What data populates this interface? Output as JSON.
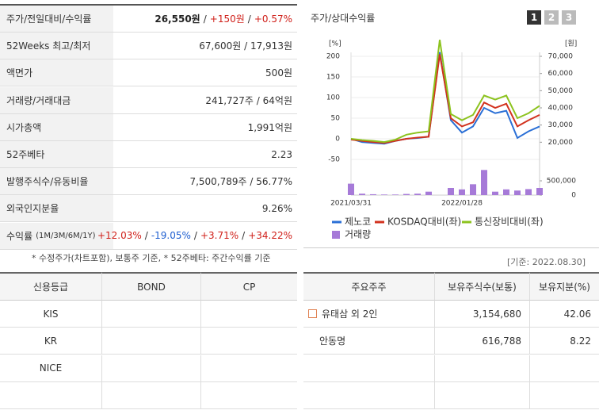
{
  "summary": {
    "rows": [
      {
        "label": "주가/전일대비/수익률",
        "parts": [
          {
            "text": "26,550원",
            "tone": "bold"
          },
          {
            "text": "+150원",
            "tone": "up"
          },
          {
            "text": "+0.57%",
            "tone": "up"
          }
        ]
      },
      {
        "label": "52Weeks 최고/최저",
        "parts": [
          {
            "text": "67,600원 / 17,913원",
            "tone": "plain"
          }
        ]
      },
      {
        "label": "액면가",
        "parts": [
          {
            "text": "500원",
            "tone": "plain"
          }
        ]
      },
      {
        "label": "거래량/거래대금",
        "parts": [
          {
            "text": "241,727주 / 64억원",
            "tone": "plain"
          }
        ]
      },
      {
        "label": "시가총액",
        "parts": [
          {
            "text": "1,991억원",
            "tone": "plain"
          }
        ]
      },
      {
        "label": "52주베타",
        "parts": [
          {
            "text": "2.23",
            "tone": "plain"
          }
        ]
      },
      {
        "label": "발행주식수/유동비율",
        "parts": [
          {
            "text": "7,500,789주 / 56.77%",
            "tone": "plain"
          }
        ]
      },
      {
        "label": "외국인지분율",
        "parts": [
          {
            "text": "9.26%",
            "tone": "plain"
          }
        ]
      },
      {
        "label": "수익률",
        "sublabel": "(1M/3M/6M/1Y)",
        "parts": [
          {
            "text": "+12.03%",
            "tone": "up"
          },
          {
            "text": "-19.05%",
            "tone": "down"
          },
          {
            "text": "+3.71%",
            "tone": "up"
          },
          {
            "text": "+34.22%",
            "tone": "up"
          }
        ]
      }
    ],
    "separator": "/",
    "note": "* 수정주가(차트포함), 보통주 기준, * 52주베타: 주간수익률 기준"
  },
  "credit": {
    "header": [
      "신용등급",
      "BOND",
      "CP"
    ],
    "rows": [
      [
        "KIS",
        "",
        ""
      ],
      [
        "KR",
        "",
        ""
      ],
      [
        "NICE",
        "",
        ""
      ],
      [
        "",
        "",
        ""
      ]
    ]
  },
  "chart_panel": {
    "title": "주가/상대수익률",
    "tabs": [
      "1",
      "2",
      "3"
    ],
    "base_date": "[기준: 2022.08.30]"
  },
  "chart_data": {
    "type": "line",
    "y_unit": "[%]",
    "y2_unit": "[원]",
    "categories": [
      "2021/03/31",
      null,
      null,
      null,
      null,
      null,
      null,
      null,
      null,
      null,
      "2022/01/28",
      null,
      null,
      null,
      null,
      null,
      null,
      null
    ],
    "ylim": [
      -50,
      200
    ],
    "yticks": [
      -50,
      0,
      50,
      100,
      150,
      200
    ],
    "y2lim": [
      10000,
      70000
    ],
    "y2ticks": [
      {
        "value": 20000,
        "label": "20,000"
      },
      {
        "value": 30000,
        "label": "30,000"
      },
      {
        "value": 40000,
        "label": "40,000"
      },
      {
        "value": 50000,
        "label": "50,000"
      },
      {
        "value": 60000,
        "label": "60,000"
      },
      {
        "value": 70000,
        "label": "70,000"
      }
    ],
    "y3lim": [
      0,
      1000000
    ],
    "y3ticks": [
      0,
      {
        "value": 500000,
        "label": "500,000"
      }
    ],
    "series": [
      {
        "name": "제노코",
        "color": "#2a6fd6",
        "values": [
          0,
          -8,
          -10,
          -12,
          -5,
          0,
          2,
          5,
          210,
          45,
          15,
          30,
          75,
          62,
          68,
          2,
          18,
          30
        ]
      },
      {
        "name": "KOSDAQ대비(좌)",
        "color": "#d2321e",
        "values": [
          -2,
          -5,
          -8,
          -10,
          -5,
          0,
          3,
          5,
          205,
          50,
          30,
          40,
          88,
          75,
          85,
          30,
          45,
          58
        ]
      },
      {
        "name": "통신장비대비(좌)",
        "color": "#8cc31e",
        "values": [
          0,
          -3,
          -5,
          -8,
          -2,
          10,
          15,
          18,
          240,
          60,
          45,
          58,
          105,
          95,
          105,
          50,
          62,
          80
        ]
      },
      {
        "name": "거래량",
        "color": "#a67ad8",
        "axis": "y3",
        "values": [
          400000,
          50000,
          30000,
          20000,
          20000,
          40000,
          50000,
          120000,
          0,
          250000,
          200000,
          380000,
          880000,
          120000,
          200000,
          160000,
          210000,
          250000
        ]
      }
    ]
  },
  "holders": {
    "header": [
      "주요주주",
      "보유주식수(보통)",
      "보유지분(%)"
    ],
    "rows": [
      [
        "유태삼 외 2인",
        "3,154,680",
        "42.06"
      ],
      [
        "안동명",
        "616,788",
        "8.22"
      ],
      [
        "",
        "",
        ""
      ],
      [
        "",
        "",
        ""
      ]
    ]
  }
}
